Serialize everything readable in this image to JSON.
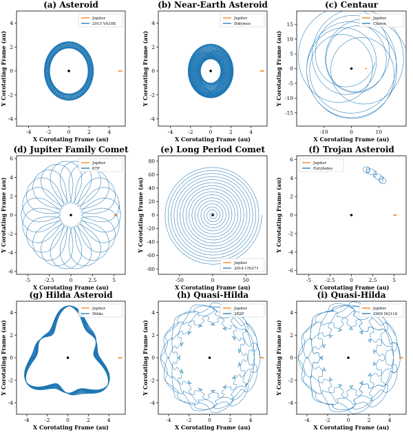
{
  "chart_data": [
    {
      "panel": "a",
      "type": "line",
      "title": "(a) Asteroid",
      "xlabel": "X Corotating Frame (au)",
      "ylabel": "Y Corotating Frame (au)",
      "xlim": [
        -5.2,
        5.6
      ],
      "ylim": [
        -4.6,
        5.0
      ],
      "xticks": [
        -4,
        -2,
        0,
        2,
        4
      ],
      "yticks": [
        -4,
        -2,
        0,
        2,
        4
      ],
      "legend_position": "top-right",
      "series": [
        {
          "name": "Jupiter",
          "color": "#ff7f0e",
          "points": [
            [
              4.9,
              0
            ],
            [
              5.3,
              0
            ]
          ]
        },
        {
          "name": "2015 VA108",
          "color": "#1f77b4",
          "orbit": {
            "r1": 1.9,
            "r2": 2.45,
            "loops": 33,
            "drift": 0.0
          }
        }
      ],
      "markers": [
        {
          "label": "Sun",
          "x": 0,
          "y": 0
        }
      ]
    },
    {
      "panel": "b",
      "type": "line",
      "title": "(b) Near-Earth Asteroid",
      "xlabel": "X Corotating Frame (au)",
      "ylabel": "Y Corotating Frame (au)",
      "xlim": [
        -5.2,
        5.6
      ],
      "ylim": [
        -4.6,
        5.0
      ],
      "xticks": [
        -4,
        -2,
        0,
        2,
        4
      ],
      "yticks": [
        -4,
        -2,
        0,
        2,
        4
      ],
      "legend_position": "top-right",
      "series": [
        {
          "name": "Jupiter",
          "color": "#ff7f0e",
          "points": [
            [
              4.9,
              0
            ],
            [
              5.3,
              0
            ]
          ]
        },
        {
          "name": "Didymos",
          "color": "#1f77b4",
          "orbit": {
            "r1": 1.0,
            "r2": 2.25,
            "loops": 80,
            "drift": 0.0
          }
        }
      ],
      "markers": [
        {
          "label": "Sun",
          "x": 0,
          "y": 0
        }
      ]
    },
    {
      "panel": "c",
      "type": "line",
      "title": "(c) Centaur",
      "xlabel": "X Corotating Frame (au)",
      "ylabel": "Y Corotating Frame (au)",
      "xlim": [
        -20,
        20
      ],
      "ylim": [
        -19.5,
        19.5
      ],
      "xticks": [
        -10,
        0,
        10
      ],
      "yticks": [
        -15,
        -10,
        -5,
        0,
        5,
        10,
        15
      ],
      "legend_position": "top-right",
      "series": [
        {
          "name": "Jupiter",
          "color": "#ff7f0e",
          "points": [
            [
              5.0,
              0
            ],
            [
              5.6,
              0
            ]
          ]
        },
        {
          "name": "Chiron",
          "color": "#1f77b4",
          "orbit": {
            "r1": 8.5,
            "r2": 18.8,
            "loops": 9,
            "drift": 2.5
          }
        }
      ],
      "markers": [
        {
          "label": "Sun",
          "x": 0,
          "y": 0
        }
      ]
    },
    {
      "panel": "d",
      "type": "line",
      "title": "(d) Jupiter Family Comet",
      "xlabel": "X Corotating Frame (au)",
      "ylabel": "Y Corotating Frame (au)",
      "xlim": [
        -6.3,
        6.3
      ],
      "ylim": [
        -6.3,
        6.3
      ],
      "xticks": [
        -5.0,
        -2.5,
        0.0,
        2.5,
        5.0
      ],
      "yticks": [
        -6,
        -4,
        -2,
        0,
        2,
        4,
        6
      ],
      "legend_position": "top-right",
      "series": [
        {
          "name": "Jupiter",
          "color": "#ff7f0e",
          "points": [
            [
              5.0,
              0
            ],
            [
              5.4,
              0
            ]
          ]
        },
        {
          "name": "67P",
          "color": "#1f77b4",
          "orbit": {
            "type": "loops",
            "r1": 1.25,
            "r2": 5.75,
            "lobes": 11,
            "passes": 2
          }
        }
      ],
      "markers": [
        {
          "label": "Sun",
          "x": 0,
          "y": 0
        }
      ]
    },
    {
      "panel": "e",
      "type": "line",
      "title": "(e) Long Period Comet",
      "xlabel": "X Corotating Frame (au)",
      "ylabel": "Y Corotating Frame (au)",
      "xlim": [
        -82,
        82
      ],
      "ylim": [
        -88,
        88
      ],
      "xticks": [
        -50,
        0,
        50
      ],
      "yticks": [
        -80,
        -60,
        -40,
        -20,
        0,
        20,
        40,
        60,
        80
      ],
      "legend_position": "bottom-right",
      "series": [
        {
          "name": "Jupiter",
          "color": "#ff7f0e",
          "points": [
            [
              5.0,
              0
            ],
            [
              5.4,
              0
            ]
          ]
        },
        {
          "name": "2014 UN271",
          "color": "#1f77b4",
          "orbit": {
            "type": "spiral",
            "r_min": 2,
            "r_max": 74,
            "turns": 16
          }
        }
      ],
      "markers": [
        {
          "label": "Sun",
          "x": 0,
          "y": 0
        }
      ]
    },
    {
      "panel": "f",
      "type": "line",
      "title": "(f) Trojan Asteroid",
      "xlabel": "X Corotating Frame (au)",
      "ylabel": "Y Corotating Frame (au)",
      "xlim": [
        -6.4,
        6.4
      ],
      "ylim": [
        -6.4,
        6.4
      ],
      "xticks": [
        -5.0,
        -2.5,
        0.0,
        2.5,
        5.0
      ],
      "yticks": [
        -6,
        -4,
        -2,
        0,
        2,
        4,
        6
      ],
      "legend_position": "top-left",
      "series": [
        {
          "name": "Jupiter",
          "color": "#ff7f0e",
          "points": [
            [
              4.9,
              0
            ],
            [
              5.3,
              0
            ]
          ]
        },
        {
          "name": "Eurybates",
          "color": "#1f77b4",
          "orbit": {
            "type": "trojan",
            "center_angle_deg": 58,
            "r": 5.2,
            "arc_deg": 26,
            "loops": 7,
            "loop_r": 0.35
          }
        }
      ],
      "markers": [
        {
          "label": "Sun",
          "x": 0,
          "y": 0
        }
      ]
    },
    {
      "panel": "g",
      "type": "line",
      "title": "(g) Hilda Asteroid",
      "xlabel": "X Corotating Frame (au)",
      "ylabel": "Y Corotating Frame (au)",
      "xlim": [
        -5.0,
        5.6
      ],
      "ylim": [
        -5.0,
        5.0
      ],
      "xticks": [
        -4,
        -2,
        0,
        2,
        4
      ],
      "yticks": [
        -4,
        -2,
        0,
        2,
        4
      ],
      "legend_position": "top-right",
      "series": [
        {
          "name": "Jupiter",
          "color": "#ff7f0e",
          "points": [
            [
              4.9,
              0
            ],
            [
              5.3,
              0
            ]
          ]
        },
        {
          "name": "Hilda",
          "color": "#1f77b4",
          "orbit": {
            "type": "hilda",
            "r0": 3.5,
            "amp": 0.85,
            "passes": 14
          }
        }
      ],
      "markers": [
        {
          "label": "Sun",
          "x": 0,
          "y": 0
        }
      ]
    },
    {
      "panel": "h",
      "type": "line",
      "title": "(h) Quasi-Hilda",
      "xlabel": "X Corotating Frame (au)",
      "ylabel": "Y Corotating Frame (au)",
      "xlim": [
        -5.0,
        5.6
      ],
      "ylim": [
        -5.0,
        5.0
      ],
      "xticks": [
        -4,
        -2,
        0,
        2,
        4
      ],
      "yticks": [
        -4,
        -2,
        0,
        2,
        4
      ],
      "legend_position": "top-right",
      "series": [
        {
          "name": "Jupiter",
          "color": "#ff7f0e",
          "points": [
            [
              4.9,
              0
            ],
            [
              5.3,
              0
            ]
          ]
        },
        {
          "name": "282P",
          "color": "#1f77b4",
          "orbit": {
            "type": "quasi",
            "r1": 2.9,
            "r2": 4.6,
            "lobes": 3,
            "passes": 5
          }
        }
      ],
      "markers": [
        {
          "label": "Sun",
          "x": 0,
          "y": 0
        }
      ]
    },
    {
      "panel": "i",
      "type": "line",
      "title": "(i) Quasi-Hilda",
      "xlabel": "X Corotating Frame (au)",
      "ylabel": "Y Corotating Frame (au)",
      "xlim": [
        -5.0,
        5.6
      ],
      "ylim": [
        -5.0,
        5.0
      ],
      "xticks": [
        -4,
        -2,
        0,
        2,
        4
      ],
      "yticks": [
        -4,
        -2,
        0,
        2,
        4
      ],
      "legend_position": "top-right",
      "series": [
        {
          "name": "Jupiter",
          "color": "#ff7f0e",
          "points": [
            [
              4.9,
              0
            ],
            [
              5.3,
              0
            ]
          ]
        },
        {
          "name": "2009 DQ118",
          "color": "#1f77b4",
          "orbit": {
            "type": "quasi",
            "r1": 2.5,
            "r2": 4.7,
            "lobes": 3,
            "passes": 6
          }
        }
      ],
      "markers": [
        {
          "label": "Sun",
          "x": 0,
          "y": 0
        }
      ]
    }
  ]
}
